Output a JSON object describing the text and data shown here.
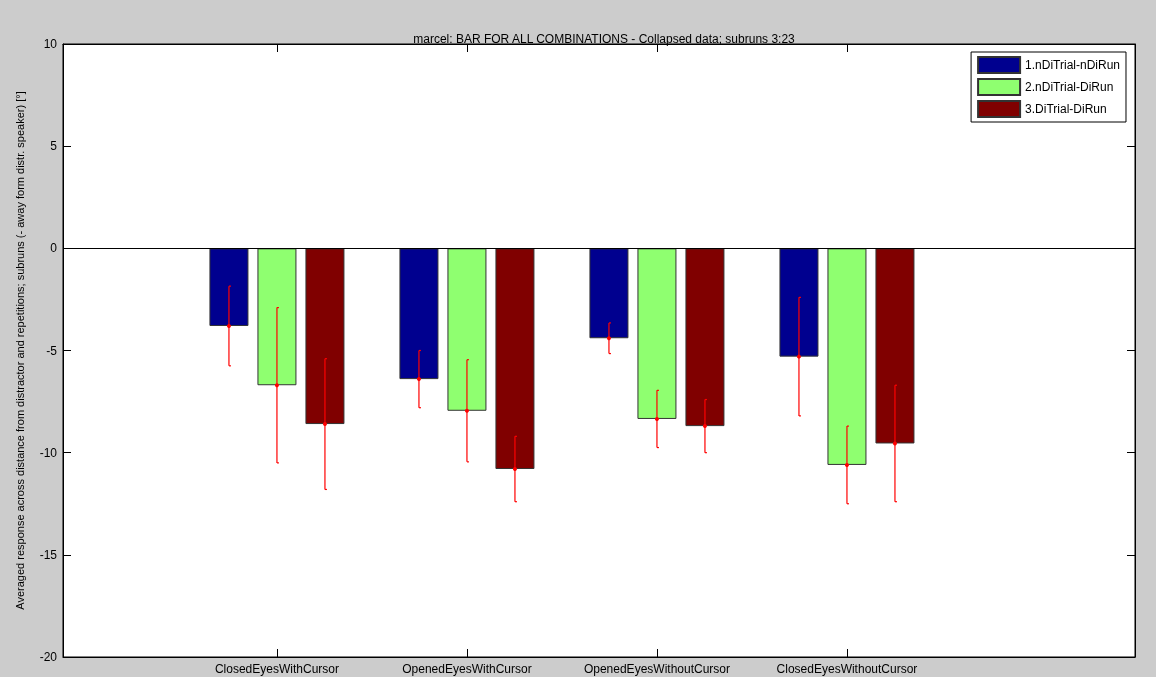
{
  "chart_data": {
    "type": "bar",
    "title": "marcel: BAR FOR ALL COMBINATIONS - Collapsed data; subruns 3:23",
    "ylabel": "Averaged response across distance from distractor and repetitions; subruns (- away form distr. speaker) [°]",
    "categories": [
      "ClosedEyesWithCursor",
      "OpenedEyesWithCursor",
      "OpenedEyesWithoutCursor",
      "ClosedEyesWithoutCursor"
    ],
    "series": [
      {
        "name": "1.nDiTrial-nDiRun",
        "color": "#00008f",
        "values": [
          -3.8,
          -6.4,
          -4.4,
          -5.3
        ],
        "errors": [
          1.95,
          1.4,
          0.75,
          2.9
        ]
      },
      {
        "name": "2.nDiTrial-DiRun",
        "color": "#8fff70",
        "values": [
          -6.7,
          -7.95,
          -8.35,
          -10.6
        ],
        "errors": [
          3.8,
          2.5,
          1.4,
          1.9
        ]
      },
      {
        "name": "3.DiTrial-DiRun",
        "color": "#800000",
        "values": [
          -8.6,
          -10.8,
          -8.7,
          -9.55
        ],
        "errors": [
          3.2,
          1.6,
          1.3,
          2.85
        ]
      }
    ],
    "ylim": [
      -20,
      10
    ],
    "yticks": [
      -20,
      -15,
      -10,
      -5,
      0,
      5,
      10
    ],
    "grid": false,
    "legend": "top right",
    "ref_lines": [
      {
        "axis": "y",
        "value": 0,
        "color": "#000000"
      }
    ]
  }
}
